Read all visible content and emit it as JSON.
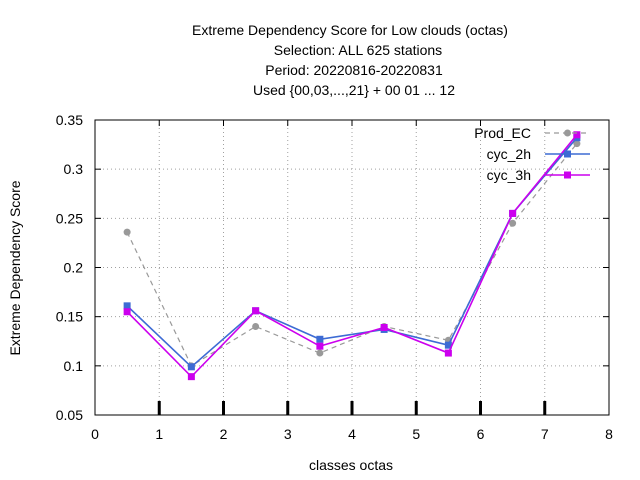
{
  "chart_data": {
    "type": "line",
    "title_lines": [
      "Extreme Dependency Score  for Low clouds (octas)",
      "Selection: ALL    625 stations",
      "Period: 20220816-20220831",
      "Used {00,03,...,21} + 00 01 ... 12"
    ],
    "xlabel": "classes octas",
    "ylabel": "Extreme Dependency Score",
    "xlim": [
      0,
      8
    ],
    "ylim": [
      0.05,
      0.35
    ],
    "x_ticks": [
      0,
      1,
      2,
      3,
      4,
      5,
      6,
      7,
      8
    ],
    "y_ticks": [
      0.05,
      0.1,
      0.15,
      0.2,
      0.25,
      0.3,
      0.35
    ],
    "x_tick_labels": [
      "0",
      "1",
      "2",
      "3",
      "4",
      "5",
      "6",
      "7",
      "8"
    ],
    "y_tick_labels": [
      "0.05",
      "0.1",
      "0.15",
      "0.2",
      "0.25",
      "0.3",
      "0.35"
    ],
    "grid": true,
    "legend_position": "top-right",
    "x": [
      0.5,
      1.5,
      2.5,
      3.5,
      4.5,
      5.5,
      6.5,
      7.5
    ],
    "series": [
      {
        "name": "Prod_EC",
        "values": [
          0.236,
          0.1,
          0.14,
          0.113,
          0.14,
          0.126,
          0.245,
          0.326
        ],
        "color": "#999999",
        "dashed": true,
        "marker": "circle"
      },
      {
        "name": "cyc_2h",
        "values": [
          0.161,
          0.099,
          0.156,
          0.127,
          0.137,
          0.121,
          0.255,
          0.332
        ],
        "color": "#3d6bd4",
        "dashed": false,
        "marker": "square"
      },
      {
        "name": "cyc_3h",
        "values": [
          0.155,
          0.089,
          0.156,
          0.12,
          0.139,
          0.113,
          0.255,
          0.335
        ],
        "color": "#cc00ee",
        "dashed": false,
        "marker": "square"
      }
    ],
    "bottom_ticks_x": [
      1,
      2,
      3,
      4,
      5,
      6,
      7
    ]
  }
}
